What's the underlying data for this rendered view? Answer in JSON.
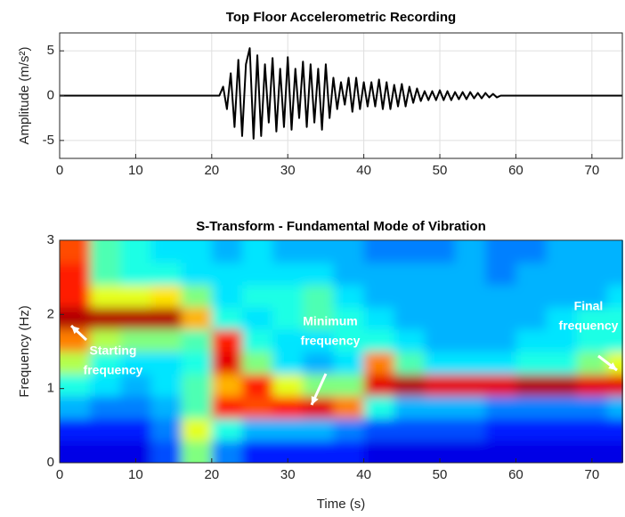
{
  "chart_data": [
    {
      "type": "line",
      "title": "Top Floor Accelerometric Recording",
      "ylabel": "Amplitude (m/s²)",
      "xlim": [
        0,
        74
      ],
      "xticks": [
        0,
        10,
        20,
        30,
        40,
        50,
        60,
        70
      ],
      "ylim": [
        -7,
        7
      ],
      "yticks": [
        -5,
        0,
        5
      ],
      "grid": true,
      "series": [
        {
          "color": "#000000",
          "x": [
            0,
            20,
            21,
            21.5,
            22,
            22.5,
            23,
            23.5,
            24,
            24.5,
            25,
            25.5,
            26,
            26.5,
            27,
            27.5,
            28,
            28.5,
            29,
            29.5,
            30,
            30.5,
            31,
            31.5,
            32,
            32.5,
            33,
            33.5,
            34,
            34.5,
            35,
            35.5,
            36,
            36.5,
            37,
            37.5,
            38,
            38.5,
            39,
            39.5,
            40,
            40.5,
            41,
            41.5,
            42,
            42.5,
            43,
            43.5,
            44,
            44.5,
            45,
            45.5,
            46,
            46.5,
            47,
            47.5,
            48,
            48.5,
            49,
            49.5,
            50,
            50.5,
            51,
            51.5,
            52,
            52.5,
            53,
            53.5,
            54,
            54.5,
            55,
            55.5,
            56,
            56.5,
            57,
            57.5,
            58,
            74
          ],
          "values": [
            0,
            0,
            0,
            1,
            -1.5,
            2.5,
            -3.5,
            4,
            -4.5,
            3.5,
            5.3,
            -4.8,
            4.5,
            -4.5,
            3.5,
            -3,
            4.2,
            -4,
            3,
            -3.5,
            4.3,
            -3.8,
            3,
            -2.5,
            3.8,
            -3.5,
            3.5,
            -3,
            3,
            -3.8,
            3.5,
            -2.5,
            2,
            -1.5,
            1.5,
            -1,
            2,
            -1.8,
            2,
            -1.5,
            1.5,
            -1.2,
            1.5,
            -1.2,
            1.8,
            -1.5,
            1.5,
            -1.5,
            1.2,
            -1.2,
            1.3,
            -1.2,
            1,
            -0.8,
            0.8,
            -0.6,
            0.5,
            -0.5,
            0.5,
            -0.5,
            0.6,
            -0.5,
            0.5,
            -0.5,
            0.4,
            -0.4,
            0.4,
            -0.4,
            0.4,
            -0.3,
            0.3,
            -0.3,
            0.3,
            -0.2,
            0.2,
            -0.2,
            0,
            0
          ]
        }
      ]
    },
    {
      "type": "heatmap",
      "title": "S-Transform - Fundamental Mode of Vibration",
      "xlabel": "Time (s)",
      "ylabel": "Frequency (Hz)",
      "xlim": [
        0,
        74
      ],
      "xticks": [
        0,
        10,
        20,
        30,
        40,
        50,
        60,
        70
      ],
      "ylim": [
        0,
        3
      ],
      "yticks": [
        0,
        1,
        2,
        3
      ],
      "colormap": "jet",
      "x_bins": [
        0,
        4,
        8,
        12,
        16,
        20,
        24,
        28,
        32,
        36,
        40,
        44,
        48,
        52,
        56,
        60,
        64,
        68,
        72,
        74
      ],
      "y_bins": [
        0,
        0.3,
        0.6,
        0.9,
        1.2,
        1.5,
        1.8,
        2.1,
        2.4,
        2.7,
        3
      ],
      "z": [
        [
          0.1,
          0.1,
          0.1,
          0.2,
          0.5,
          0.25,
          0.15,
          0.15,
          0.15,
          0.15,
          0.1,
          0.1,
          0.1,
          0.1,
          0.1,
          0.1,
          0.1,
          0.1,
          0.1
        ],
        [
          0.15,
          0.15,
          0.15,
          0.25,
          0.6,
          0.4,
          0.3,
          0.3,
          0.3,
          0.25,
          0.2,
          0.2,
          0.2,
          0.2,
          0.15,
          0.15,
          0.15,
          0.15,
          0.15
        ],
        [
          0.3,
          0.25,
          0.25,
          0.3,
          0.45,
          0.85,
          0.8,
          0.85,
          0.9,
          0.75,
          0.4,
          0.3,
          0.3,
          0.3,
          0.25,
          0.25,
          0.25,
          0.25,
          0.3
        ],
        [
          0.4,
          0.35,
          0.3,
          0.35,
          0.45,
          0.7,
          0.85,
          0.6,
          0.5,
          0.5,
          0.9,
          0.95,
          0.9,
          0.9,
          0.9,
          0.95,
          0.95,
          0.9,
          0.9
        ],
        [
          0.55,
          0.4,
          0.35,
          0.35,
          0.4,
          0.9,
          0.5,
          0.35,
          0.3,
          0.35,
          0.75,
          0.45,
          0.35,
          0.35,
          0.35,
          0.4,
          0.4,
          0.5,
          0.6
        ],
        [
          0.75,
          0.55,
          0.5,
          0.5,
          0.45,
          0.85,
          0.4,
          0.35,
          0.35,
          0.4,
          0.4,
          0.35,
          0.3,
          0.3,
          0.3,
          0.35,
          0.35,
          0.4,
          0.4
        ],
        [
          0.95,
          0.95,
          0.95,
          0.95,
          0.7,
          0.4,
          0.35,
          0.4,
          0.45,
          0.4,
          0.35,
          0.3,
          0.3,
          0.3,
          0.3,
          0.3,
          0.35,
          0.4,
          0.4
        ],
        [
          0.85,
          0.6,
          0.6,
          0.65,
          0.5,
          0.35,
          0.4,
          0.4,
          0.45,
          0.35,
          0.3,
          0.3,
          0.3,
          0.3,
          0.3,
          0.3,
          0.3,
          0.3,
          0.35
        ],
        [
          0.85,
          0.45,
          0.4,
          0.4,
          0.35,
          0.35,
          0.35,
          0.35,
          0.35,
          0.3,
          0.3,
          0.3,
          0.3,
          0.3,
          0.25,
          0.3,
          0.3,
          0.3,
          0.3
        ],
        [
          0.8,
          0.45,
          0.4,
          0.35,
          0.35,
          0.3,
          0.35,
          0.3,
          0.3,
          0.3,
          0.25,
          0.25,
          0.25,
          0.3,
          0.25,
          0.25,
          0.3,
          0.3,
          0.3
        ]
      ],
      "annotations": [
        {
          "lines": [
            "Starting",
            "frequency"
          ]
        },
        {
          "lines": [
            "Minimum",
            "frequency"
          ]
        },
        {
          "lines": [
            "Final",
            "frequency"
          ]
        }
      ]
    }
  ]
}
